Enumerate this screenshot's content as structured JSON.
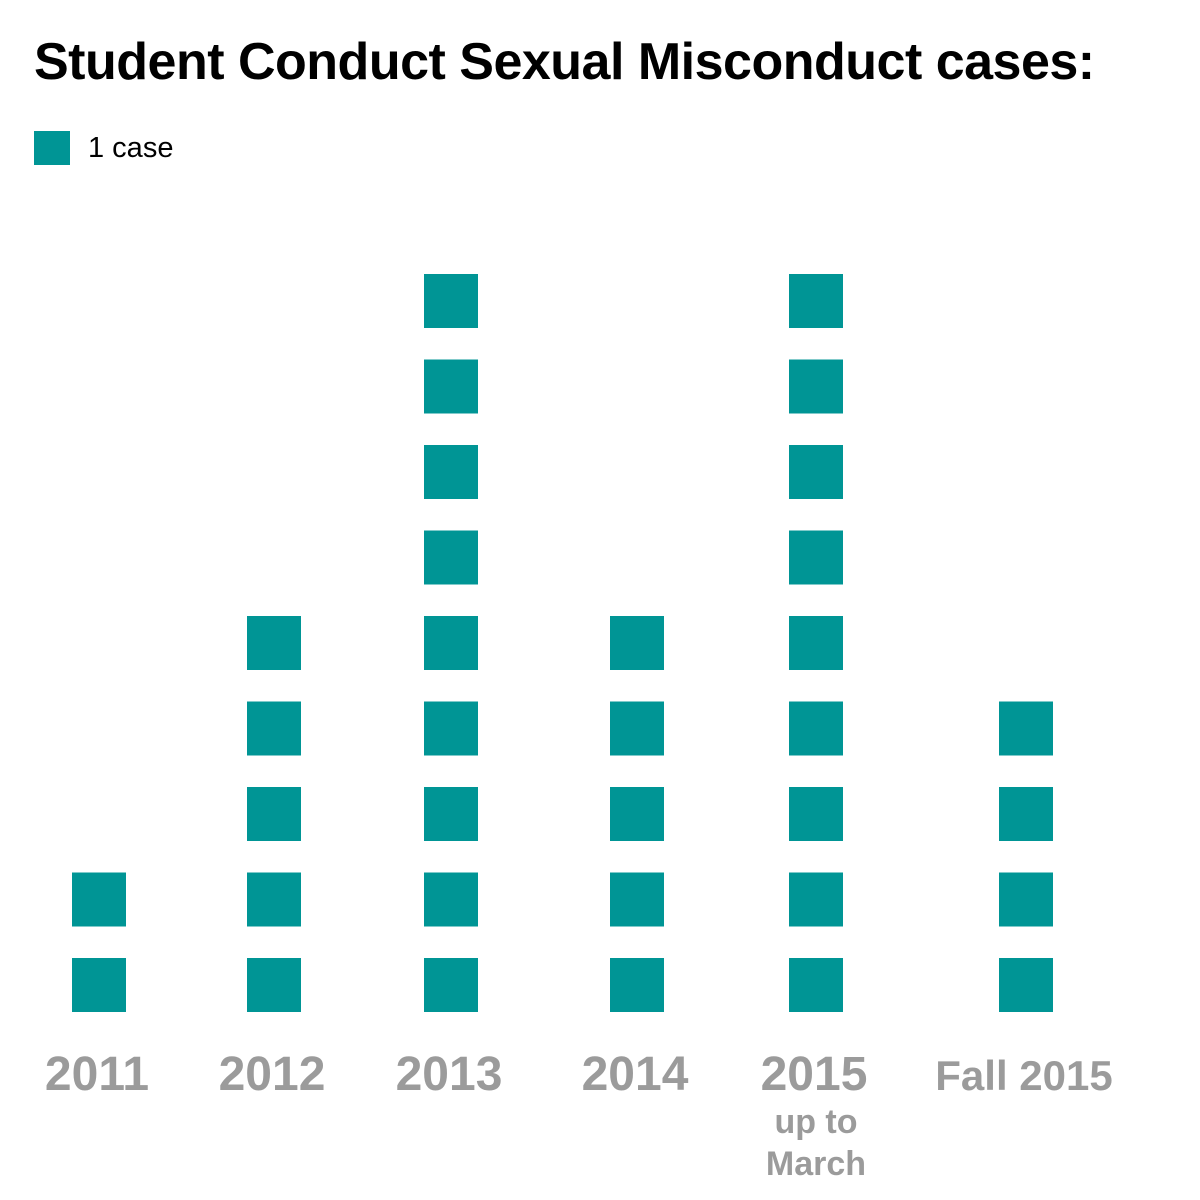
{
  "title": "Student Conduct Sexual Misconduct cases:",
  "legend": {
    "label": "1 case",
    "color": "#009595"
  },
  "chart_data": {
    "type": "bar",
    "title": "Student Conduct Sexual Misconduct cases:",
    "unit_per_mark": 1,
    "categories": [
      "2011",
      "2012",
      "2013",
      "2014",
      "2015",
      "Fall 2015"
    ],
    "category_notes": [
      "",
      "",
      "",
      "",
      "up to March",
      ""
    ],
    "values": [
      2,
      5,
      9,
      5,
      9,
      4
    ],
    "xlabel": "",
    "ylabel": "",
    "ylim": [
      0,
      9
    ],
    "grid": false,
    "legend_position": "top-left",
    "color": "#009595"
  }
}
